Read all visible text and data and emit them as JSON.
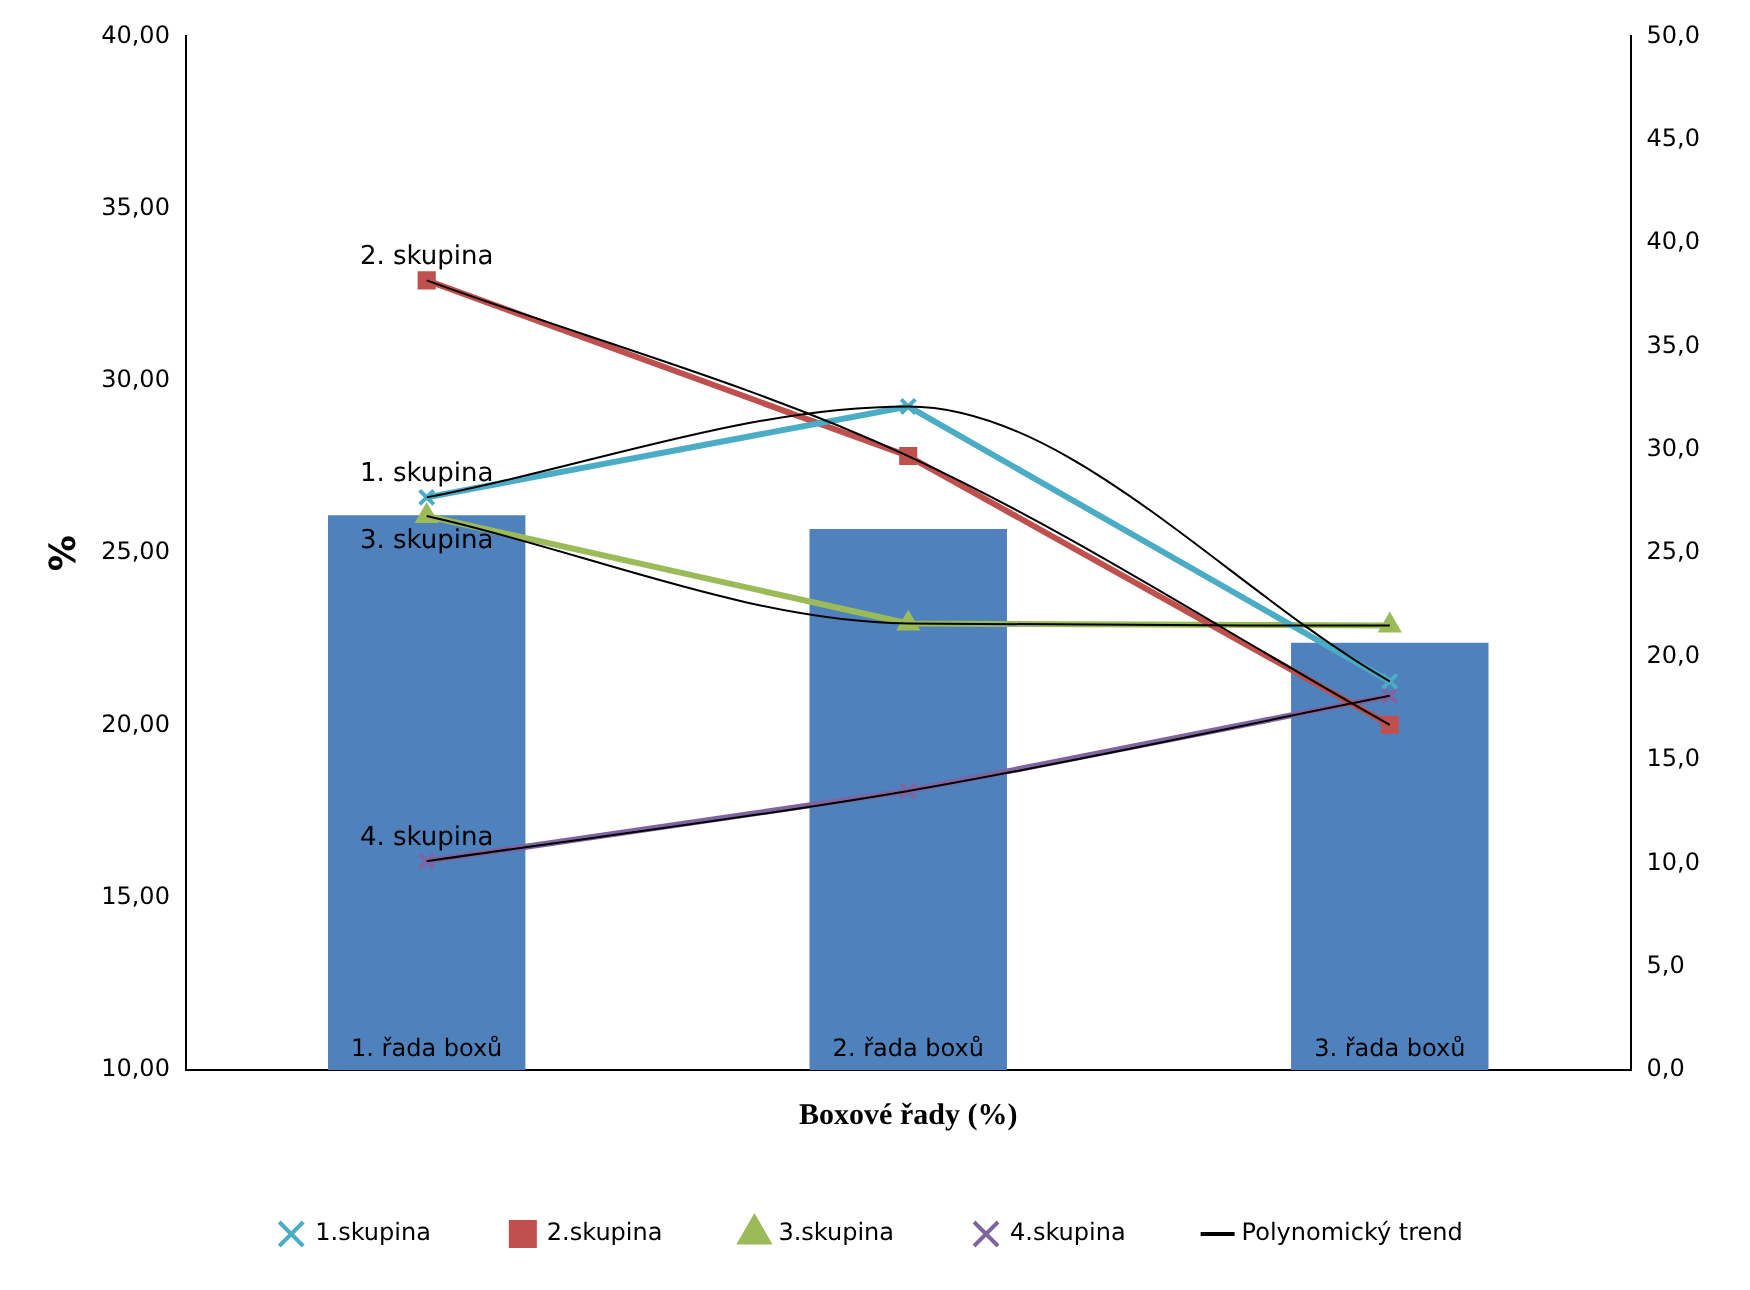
{
  "chart_data": {
    "type": "bar",
    "xlabel": "Boxové řady (%)",
    "ylabel": "%",
    "categories": [
      "1. řada boxů",
      "2. řada boxů",
      "3. řada boxů"
    ],
    "series": [
      {
        "color": "#4f81bd",
        "values": [
          26.1,
          25.7,
          22.4
        ]
      },
      {
        "type": "line",
        "axis": "y2",
        "name": "1.skupina",
        "color": "#4bacc6",
        "marker": "cross",
        "values": [
          27.7,
          32.1,
          18.8
        ]
      },
      {
        "type": "line",
        "axis": "y2",
        "name": "2.skupina",
        "color": "#c0504d",
        "marker": "square",
        "values": [
          38.2,
          29.7,
          16.7
        ]
      },
      {
        "type": "line",
        "axis": "y2",
        "name": "3.skupina",
        "color": "#9bbb59",
        "marker": "triangle",
        "values": [
          26.8,
          21.6,
          21.5
        ]
      },
      {
        "type": "line",
        "axis": "y2",
        "name": "4.skupina",
        "color": "#8064a2",
        "marker": "cross",
        "values": [
          10.1,
          13.5,
          18.1
        ]
      },
      {
        "type": "line",
        "axis": "y2",
        "name": "Polynomický trend",
        "color": "#000000",
        "marker": "none",
        "values": [
          27.7,
          32.1,
          18.8
        ]
      },
      {
        "type": "line",
        "axis": "y2",
        "color": "#000000",
        "marker": "none",
        "values": [
          38.2,
          29.7,
          16.7
        ]
      },
      {
        "type": "line",
        "axis": "y2",
        "color": "#000000",
        "marker": "none",
        "values": [
          26.8,
          21.6,
          21.5
        ]
      },
      {
        "type": "line",
        "axis": "y2",
        "color": "#000000",
        "marker": "none",
        "values": [
          10.1,
          13.5,
          18.1
        ]
      }
    ],
    "ylim": [
      10,
      40
    ],
    "yticks": [
      {
        "value": 10,
        "label": "10,00"
      },
      {
        "value": 15,
        "label": "15,00"
      },
      {
        "value": 20,
        "label": "20,00"
      },
      {
        "value": 25,
        "label": "25,00"
      },
      {
        "value": 30,
        "label": "30,00"
      },
      {
        "value": 35,
        "label": "35,00"
      },
      {
        "value": 40,
        "label": "40,00"
      }
    ],
    "y2lim": [
      0,
      50
    ],
    "y2ticks": [
      {
        "value": 0,
        "label": "0,0"
      },
      {
        "value": 5,
        "label": "5,0"
      },
      {
        "value": 10,
        "label": "10,0"
      },
      {
        "value": 15,
        "label": "15,0"
      },
      {
        "value": 20,
        "label": "20,0"
      },
      {
        "value": 25,
        "label": "25,0"
      },
      {
        "value": 30,
        "label": "30,0"
      },
      {
        "value": 35,
        "label": "35,0"
      },
      {
        "value": 40,
        "label": "40,0"
      },
      {
        "value": 45,
        "label": "45,0"
      },
      {
        "value": 50,
        "label": "50,0"
      }
    ],
    "annotations": [
      "1. skupina",
      "2. skupina",
      "3. skupina",
      "4. skupina"
    ],
    "grid": false,
    "legend": "bottom"
  }
}
